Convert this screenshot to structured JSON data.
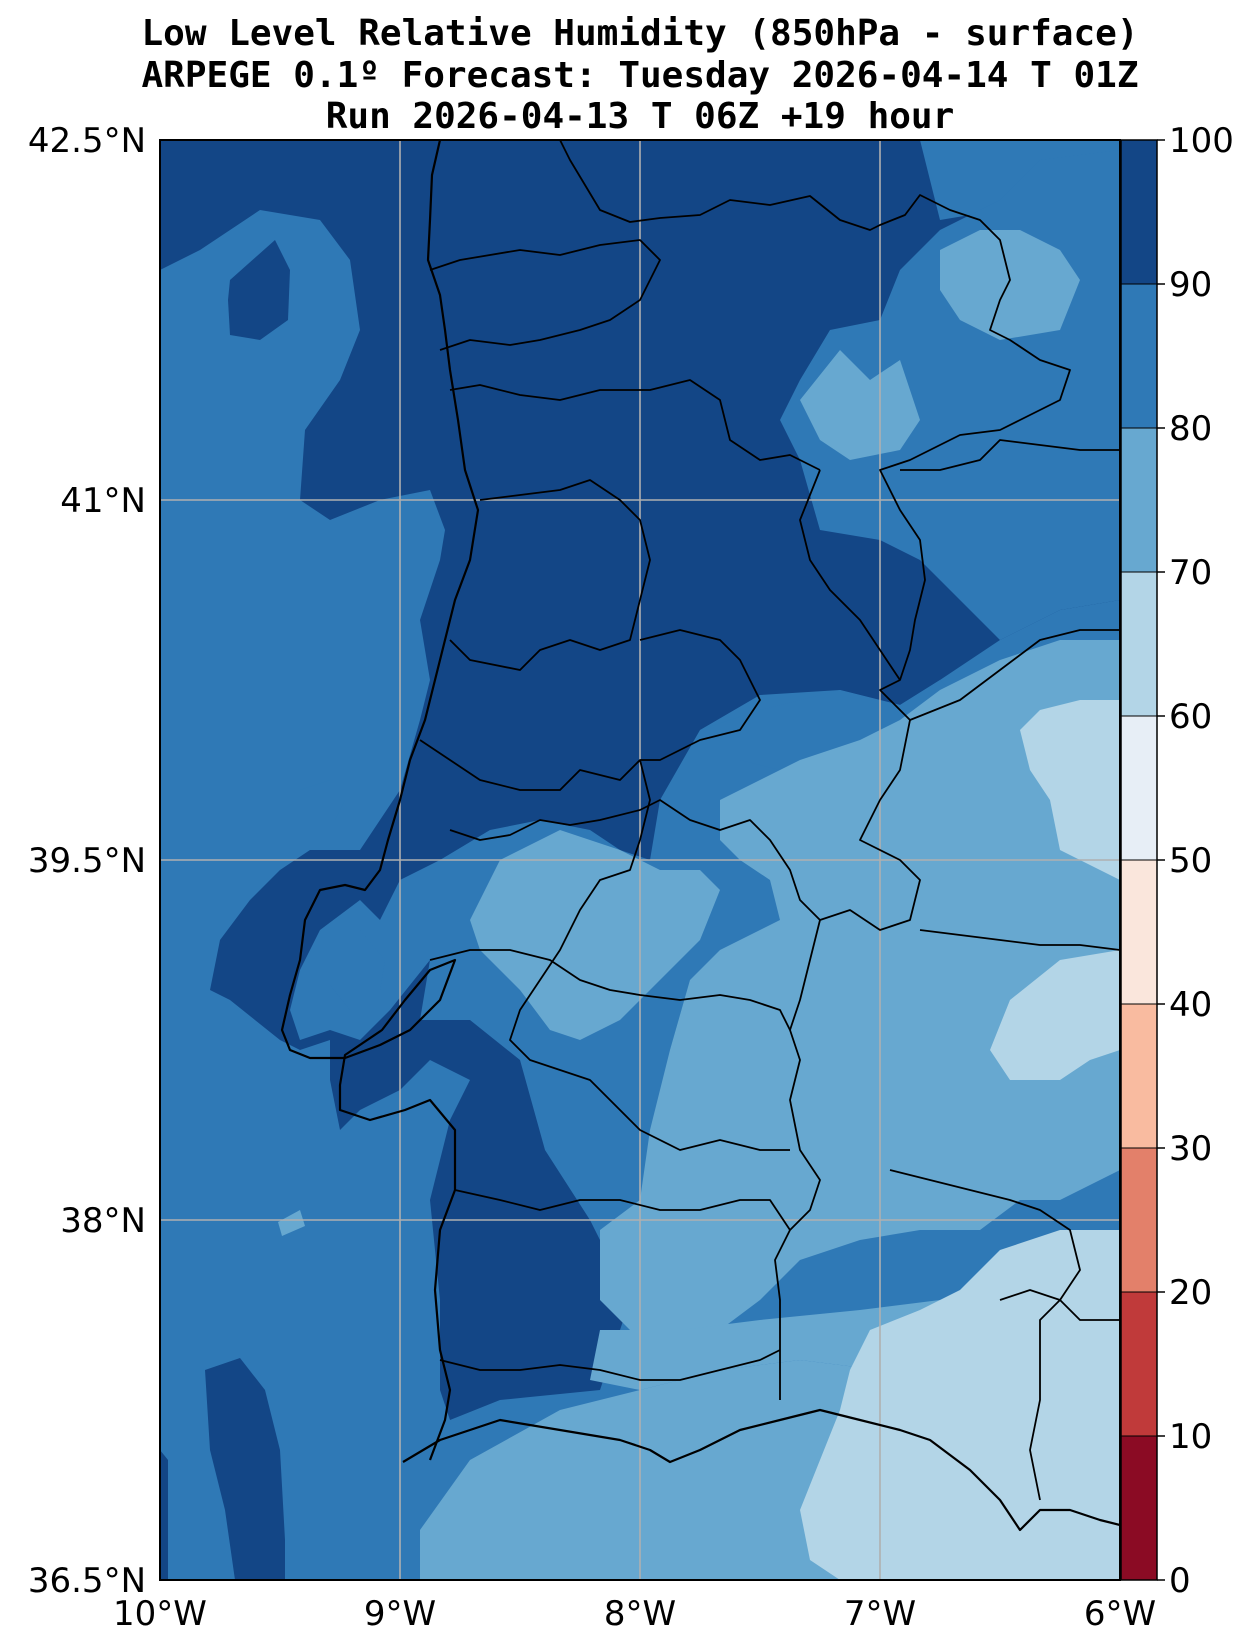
{
  "title": {
    "line1": "Low Level Relative Humidity (850hPa - surface)",
    "line2": "ARPEGE 0.1º Forecast: Tuesday 2026-04-14 T 01Z",
    "line3": "Run 2026-04-13 T 06Z +19 hour"
  },
  "map": {
    "lon_range": [
      -10,
      -6
    ],
    "lat_range": [
      36.5,
      42.5
    ],
    "x_ticks": [
      {
        "lon": -10,
        "label": "10°W"
      },
      {
        "lon": -9,
        "label": "9°W"
      },
      {
        "lon": -8,
        "label": "8°W"
      },
      {
        "lon": -7,
        "label": "7°W"
      },
      {
        "lon": -6,
        "label": "6°W"
      }
    ],
    "y_ticks": [
      {
        "lat": 42.5,
        "label": "42.5°N"
      },
      {
        "lat": 41,
        "label": "41°N"
      },
      {
        "lat": 39.5,
        "label": "39.5°N"
      },
      {
        "lat": 38,
        "label": "38°N"
      },
      {
        "lat": 36.5,
        "label": "36.5°N"
      }
    ],
    "gridlines": true
  },
  "colorbar": {
    "levels": [
      "0",
      "10",
      "20",
      "30",
      "40",
      "50",
      "60",
      "70",
      "80",
      "90",
      "100"
    ],
    "colors": [
      "#8b0b24",
      "#c03a3a",
      "#e3806a",
      "#f9bba0",
      "#fae6dc",
      "#e7eef6",
      "#b3d5e7",
      "#67a8d0",
      "#2f79b6",
      "#134686"
    ]
  },
  "field_colors": {
    "rh_60_70": "#b3d5e7",
    "rh_70_80": "#67a8d0",
    "rh_80_90": "#2f79b6",
    "rh_90_100": "#134686"
  }
}
